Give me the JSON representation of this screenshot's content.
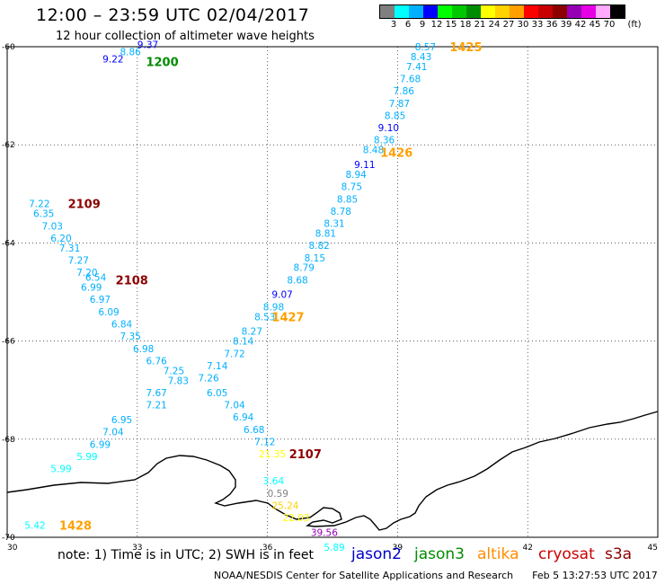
{
  "header": {
    "title": "12:00 – 23:59 UTC 02/04/2017",
    "subtitle": "12 hour collection of altimeter wave heights"
  },
  "legend": {
    "unit": "(ft)",
    "colorbar": [
      {
        "label": "3",
        "color": "#7f7f7f"
      },
      {
        "label": "6",
        "color": "#00ffff"
      },
      {
        "label": "9",
        "color": "#00b0ff"
      },
      {
        "label": "12",
        "color": "#0000ff"
      },
      {
        "label": "15",
        "color": "#00ff00"
      },
      {
        "label": "18",
        "color": "#00c800"
      },
      {
        "label": "21",
        "color": "#008c00"
      },
      {
        "label": "24",
        "color": "#ffff00"
      },
      {
        "label": "27",
        "color": "#ffd200"
      },
      {
        "label": "30",
        "color": "#ffa000"
      },
      {
        "label": "33",
        "color": "#ff0000"
      },
      {
        "label": "36",
        "color": "#c80000"
      },
      {
        "label": "39",
        "color": "#8c0000"
      },
      {
        "label": "42",
        "color": "#9600b4"
      },
      {
        "label": "45",
        "color": "#e600e6"
      },
      {
        "label": "70",
        "color": "#ffaaff"
      },
      {
        "label": "",
        "color": "#000000"
      }
    ]
  },
  "axes": {
    "x_ticks": [
      "30",
      "33",
      "36",
      "39",
      "42",
      "45"
    ],
    "y_ticks": [
      "-60",
      "-62",
      "-64",
      "-66",
      "-68",
      "-70"
    ],
    "x_range": [
      30,
      45
    ],
    "y_range": [
      -70,
      -60
    ]
  },
  "observations": [
    {
      "value": "8.57",
      "lon": 39.4,
      "lat": -60.0,
      "color": "#00b0ff"
    },
    {
      "value": "8.43",
      "lon": 39.3,
      "lat": -60.2,
      "color": "#00b0ff"
    },
    {
      "value": "7.41",
      "lon": 39.2,
      "lat": -60.4,
      "color": "#00b0ff"
    },
    {
      "value": "7.68",
      "lon": 39.05,
      "lat": -60.65,
      "color": "#00b0ff"
    },
    {
      "value": "7.86",
      "lon": 38.9,
      "lat": -60.9,
      "color": "#00b0ff"
    },
    {
      "value": "7.87",
      "lon": 38.8,
      "lat": -61.15,
      "color": "#00b0ff"
    },
    {
      "value": "8.85",
      "lon": 38.7,
      "lat": -61.4,
      "color": "#00b0ff"
    },
    {
      "value": "9.10",
      "lon": 38.55,
      "lat": -61.65,
      "color": "#0000ff"
    },
    {
      "value": "8.36",
      "lon": 38.45,
      "lat": -61.9,
      "color": "#00b0ff"
    },
    {
      "value": "8.48",
      "lon": 38.2,
      "lat": -62.1,
      "color": "#00b0ff"
    },
    {
      "value": "9.11",
      "lon": 38.0,
      "lat": -62.4,
      "color": "#0000ff"
    },
    {
      "value": "8.94",
      "lon": 37.8,
      "lat": -62.6,
      "color": "#00b0ff"
    },
    {
      "value": "8.75",
      "lon": 37.7,
      "lat": -62.85,
      "color": "#00b0ff"
    },
    {
      "value": "8.85",
      "lon": 37.6,
      "lat": -63.1,
      "color": "#00b0ff"
    },
    {
      "value": "8.78",
      "lon": 37.45,
      "lat": -63.35,
      "color": "#00b0ff"
    },
    {
      "value": "8.31",
      "lon": 37.3,
      "lat": -63.6,
      "color": "#00b0ff"
    },
    {
      "value": "8.81",
      "lon": 37.1,
      "lat": -63.8,
      "color": "#00b0ff"
    },
    {
      "value": "8.82",
      "lon": 36.95,
      "lat": -64.05,
      "color": "#00b0ff"
    },
    {
      "value": "8.15",
      "lon": 36.85,
      "lat": -64.3,
      "color": "#00b0ff"
    },
    {
      "value": "8.79",
      "lon": 36.6,
      "lat": -64.5,
      "color": "#00b0ff"
    },
    {
      "value": "8.68",
      "lon": 36.45,
      "lat": -64.75,
      "color": "#00b0ff"
    },
    {
      "value": "9.07",
      "lon": 36.1,
      "lat": -65.05,
      "color": "#0000ff"
    },
    {
      "value": "8.98",
      "lon": 35.9,
      "lat": -65.3,
      "color": "#00b0ff"
    },
    {
      "value": "8.53",
      "lon": 35.7,
      "lat": -65.5,
      "color": "#00b0ff"
    },
    {
      "value": "8.27",
      "lon": 35.4,
      "lat": -65.8,
      "color": "#00b0ff"
    },
    {
      "value": "8.14",
      "lon": 35.2,
      "lat": -66.0,
      "color": "#00b0ff"
    },
    {
      "value": "7.72",
      "lon": 35.0,
      "lat": -66.25,
      "color": "#00b0ff"
    },
    {
      "value": "7.14",
      "lon": 34.6,
      "lat": -66.5,
      "color": "#00b0ff"
    },
    {
      "value": "7.26",
      "lon": 34.4,
      "lat": -66.75,
      "color": "#00b0ff"
    },
    {
      "value": "7.21",
      "lon": 33.2,
      "lat": -67.3,
      "color": "#00b0ff"
    },
    {
      "value": "6.95",
      "lon": 32.4,
      "lat": -67.6,
      "color": "#00b0ff"
    },
    {
      "value": "7.04",
      "lon": 32.2,
      "lat": -67.85,
      "color": "#00b0ff"
    },
    {
      "value": "6.99",
      "lon": 31.9,
      "lat": -68.1,
      "color": "#00b0ff"
    },
    {
      "value": "5.99",
      "lon": 31.6,
      "lat": -68.35,
      "color": "#00ffff"
    },
    {
      "value": "5.99",
      "lon": 31.0,
      "lat": -68.6,
      "color": "#00ffff"
    },
    {
      "value": "7.22",
      "lon": 30.5,
      "lat": -63.2,
      "color": "#00b0ff"
    },
    {
      "value": "6.35",
      "lon": 30.6,
      "lat": -63.4,
      "color": "#00b0ff"
    },
    {
      "value": "7.03",
      "lon": 30.8,
      "lat": -63.65,
      "color": "#00b0ff"
    },
    {
      "value": "6.20",
      "lon": 31.0,
      "lat": -63.9,
      "color": "#00b0ff"
    },
    {
      "value": "7.31",
      "lon": 31.2,
      "lat": -64.1,
      "color": "#00b0ff"
    },
    {
      "value": "7.27",
      "lon": 31.4,
      "lat": -64.35,
      "color": "#00b0ff"
    },
    {
      "value": "7.20",
      "lon": 31.6,
      "lat": -64.6,
      "color": "#00b0ff"
    },
    {
      "value": "6.54",
      "lon": 31.8,
      "lat": -64.7,
      "color": "#00b0ff"
    },
    {
      "value": "6.99",
      "lon": 31.7,
      "lat": -64.9,
      "color": "#00b0ff"
    },
    {
      "value": "6.97",
      "lon": 31.9,
      "lat": -65.15,
      "color": "#00b0ff"
    },
    {
      "value": "6.09",
      "lon": 32.1,
      "lat": -65.4,
      "color": "#00b0ff"
    },
    {
      "value": "6.84",
      "lon": 32.4,
      "lat": -65.65,
      "color": "#00b0ff"
    },
    {
      "value": "7.35",
      "lon": 32.6,
      "lat": -65.9,
      "color": "#00b0ff"
    },
    {
      "value": "6.98",
      "lon": 32.9,
      "lat": -66.15,
      "color": "#00b0ff"
    },
    {
      "value": "6.76",
      "lon": 33.2,
      "lat": -66.4,
      "color": "#00b0ff"
    },
    {
      "value": "7.25",
      "lon": 33.6,
      "lat": -66.6,
      "color": "#00b0ff"
    },
    {
      "value": "7.83",
      "lon": 33.7,
      "lat": -66.8,
      "color": "#00b0ff"
    },
    {
      "value": "7.67",
      "lon": 33.2,
      "lat": -67.05,
      "color": "#00b0ff"
    },
    {
      "value": "6.05",
      "lon": 34.6,
      "lat": -67.05,
      "color": "#00b0ff"
    },
    {
      "value": "7.04",
      "lon": 35.0,
      "lat": -67.3,
      "color": "#00b0ff"
    },
    {
      "value": "6.94",
      "lon": 35.2,
      "lat": -67.55,
      "color": "#00b0ff"
    },
    {
      "value": "6.68",
      "lon": 35.45,
      "lat": -67.8,
      "color": "#00b0ff"
    },
    {
      "value": "7.12",
      "lon": 35.7,
      "lat": -68.05,
      "color": "#00b0ff"
    },
    {
      "value": "21.35",
      "lon": 35.8,
      "lat": -68.3,
      "color": "#ffff00"
    },
    {
      "value": "9.37",
      "lon": 33.0,
      "lat": -59.95,
      "color": "#0000ff"
    },
    {
      "value": "8.86",
      "lon": 32.6,
      "lat": -60.1,
      "color": "#00b0ff"
    },
    {
      "value": "9.22",
      "lon": 32.2,
      "lat": -60.25,
      "color": "#0000ff"
    },
    {
      "value": "3.64",
      "lon": 35.9,
      "lat": -68.85,
      "color": "#00ffff"
    },
    {
      "value": "0.59",
      "lon": 36.0,
      "lat": -69.1,
      "color": "#7f7f7f"
    },
    {
      "value": "25.24",
      "lon": 36.1,
      "lat": -69.35,
      "color": "#ffd200"
    },
    {
      "value": "22.03",
      "lon": 36.35,
      "lat": -69.6,
      "color": "#ffff00"
    },
    {
      "value": "39.56",
      "lon": 37.0,
      "lat": -69.9,
      "color": "#9600b4"
    },
    {
      "value": "5.89",
      "lon": 37.3,
      "lat": -70.2,
      "color": "#00ffff"
    },
    {
      "value": "5.42",
      "lon": 30.4,
      "lat": -69.75,
      "color": "#00ffff"
    }
  ],
  "pass_labels": [
    {
      "label": "1425",
      "lon": 40.2,
      "lat": -60.0,
      "color": "#ffa000"
    },
    {
      "label": "1426",
      "lon": 38.6,
      "lat": -62.15,
      "color": "#ffa000"
    },
    {
      "label": "1427",
      "lon": 36.1,
      "lat": -65.5,
      "color": "#ffa000"
    },
    {
      "label": "1428",
      "lon": 31.2,
      "lat": -69.75,
      "color": "#ffa000"
    },
    {
      "label": "1200",
      "lon": 33.2,
      "lat": -60.3,
      "color": "#008c00"
    },
    {
      "label": "2109",
      "lon": 31.4,
      "lat": -63.2,
      "color": "#8c0000"
    },
    {
      "label": "2108",
      "lon": 32.5,
      "lat": -64.75,
      "color": "#8c0000"
    },
    {
      "label": "2107",
      "lon": 36.5,
      "lat": -68.3,
      "color": "#8c0000"
    }
  ],
  "notes": {
    "text": "note:  1) Time is in UTC;  2) SWH is in feet",
    "missions": [
      {
        "name": "jason2",
        "color": "#0000cc"
      },
      {
        "name": "jason3",
        "color": "#008c00"
      },
      {
        "name": "altika",
        "color": "#ff8c00"
      },
      {
        "name": "cryosat",
        "color": "#cc0000"
      },
      {
        "name": "s3a",
        "color": "#8c0000"
      }
    ]
  },
  "credit": {
    "org": "NOAA/NESDIS Center for Satellite Applications and Research",
    "timestamp": "Feb  5 13:27:53 UTC 2017"
  }
}
